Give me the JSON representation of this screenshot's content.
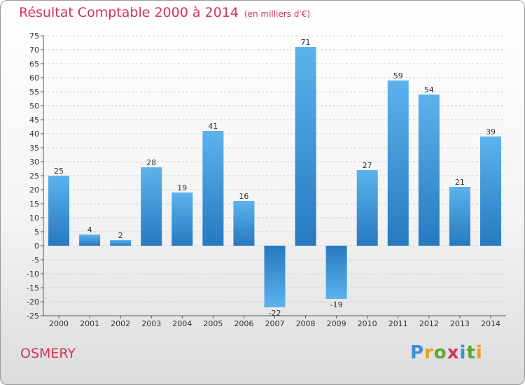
{
  "chart_data": {
    "type": "bar",
    "title": "Résultat Comptable 2000 à 2014",
    "subtitle": "(en milliers d'€)",
    "categories": [
      "2000",
      "2001",
      "2002",
      "2003",
      "2004",
      "2005",
      "2006",
      "2007",
      "2008",
      "2009",
      "2010",
      "2011",
      "2012",
      "2013",
      "2014"
    ],
    "values": [
      25,
      4,
      2,
      28,
      19,
      41,
      16,
      -22,
      71,
      -19,
      27,
      59,
      54,
      21,
      39
    ],
    "data_labels": [
      "25",
      "4",
      "2",
      "28",
      "19",
      "41",
      "16",
      "-22",
      "71",
      "-19",
      "27",
      "59",
      "54",
      "21",
      "39"
    ],
    "ylim": [
      -25,
      75
    ],
    "ytick_step": 5,
    "xlabel": "",
    "ylabel": "",
    "grid": true
  },
  "footer": {
    "place": "OSMERY",
    "brand": "Proxiti"
  },
  "colors": {
    "bar_light": "#5ab0ea",
    "bar_dark": "#2a7fc4",
    "title": "#d4335a"
  }
}
